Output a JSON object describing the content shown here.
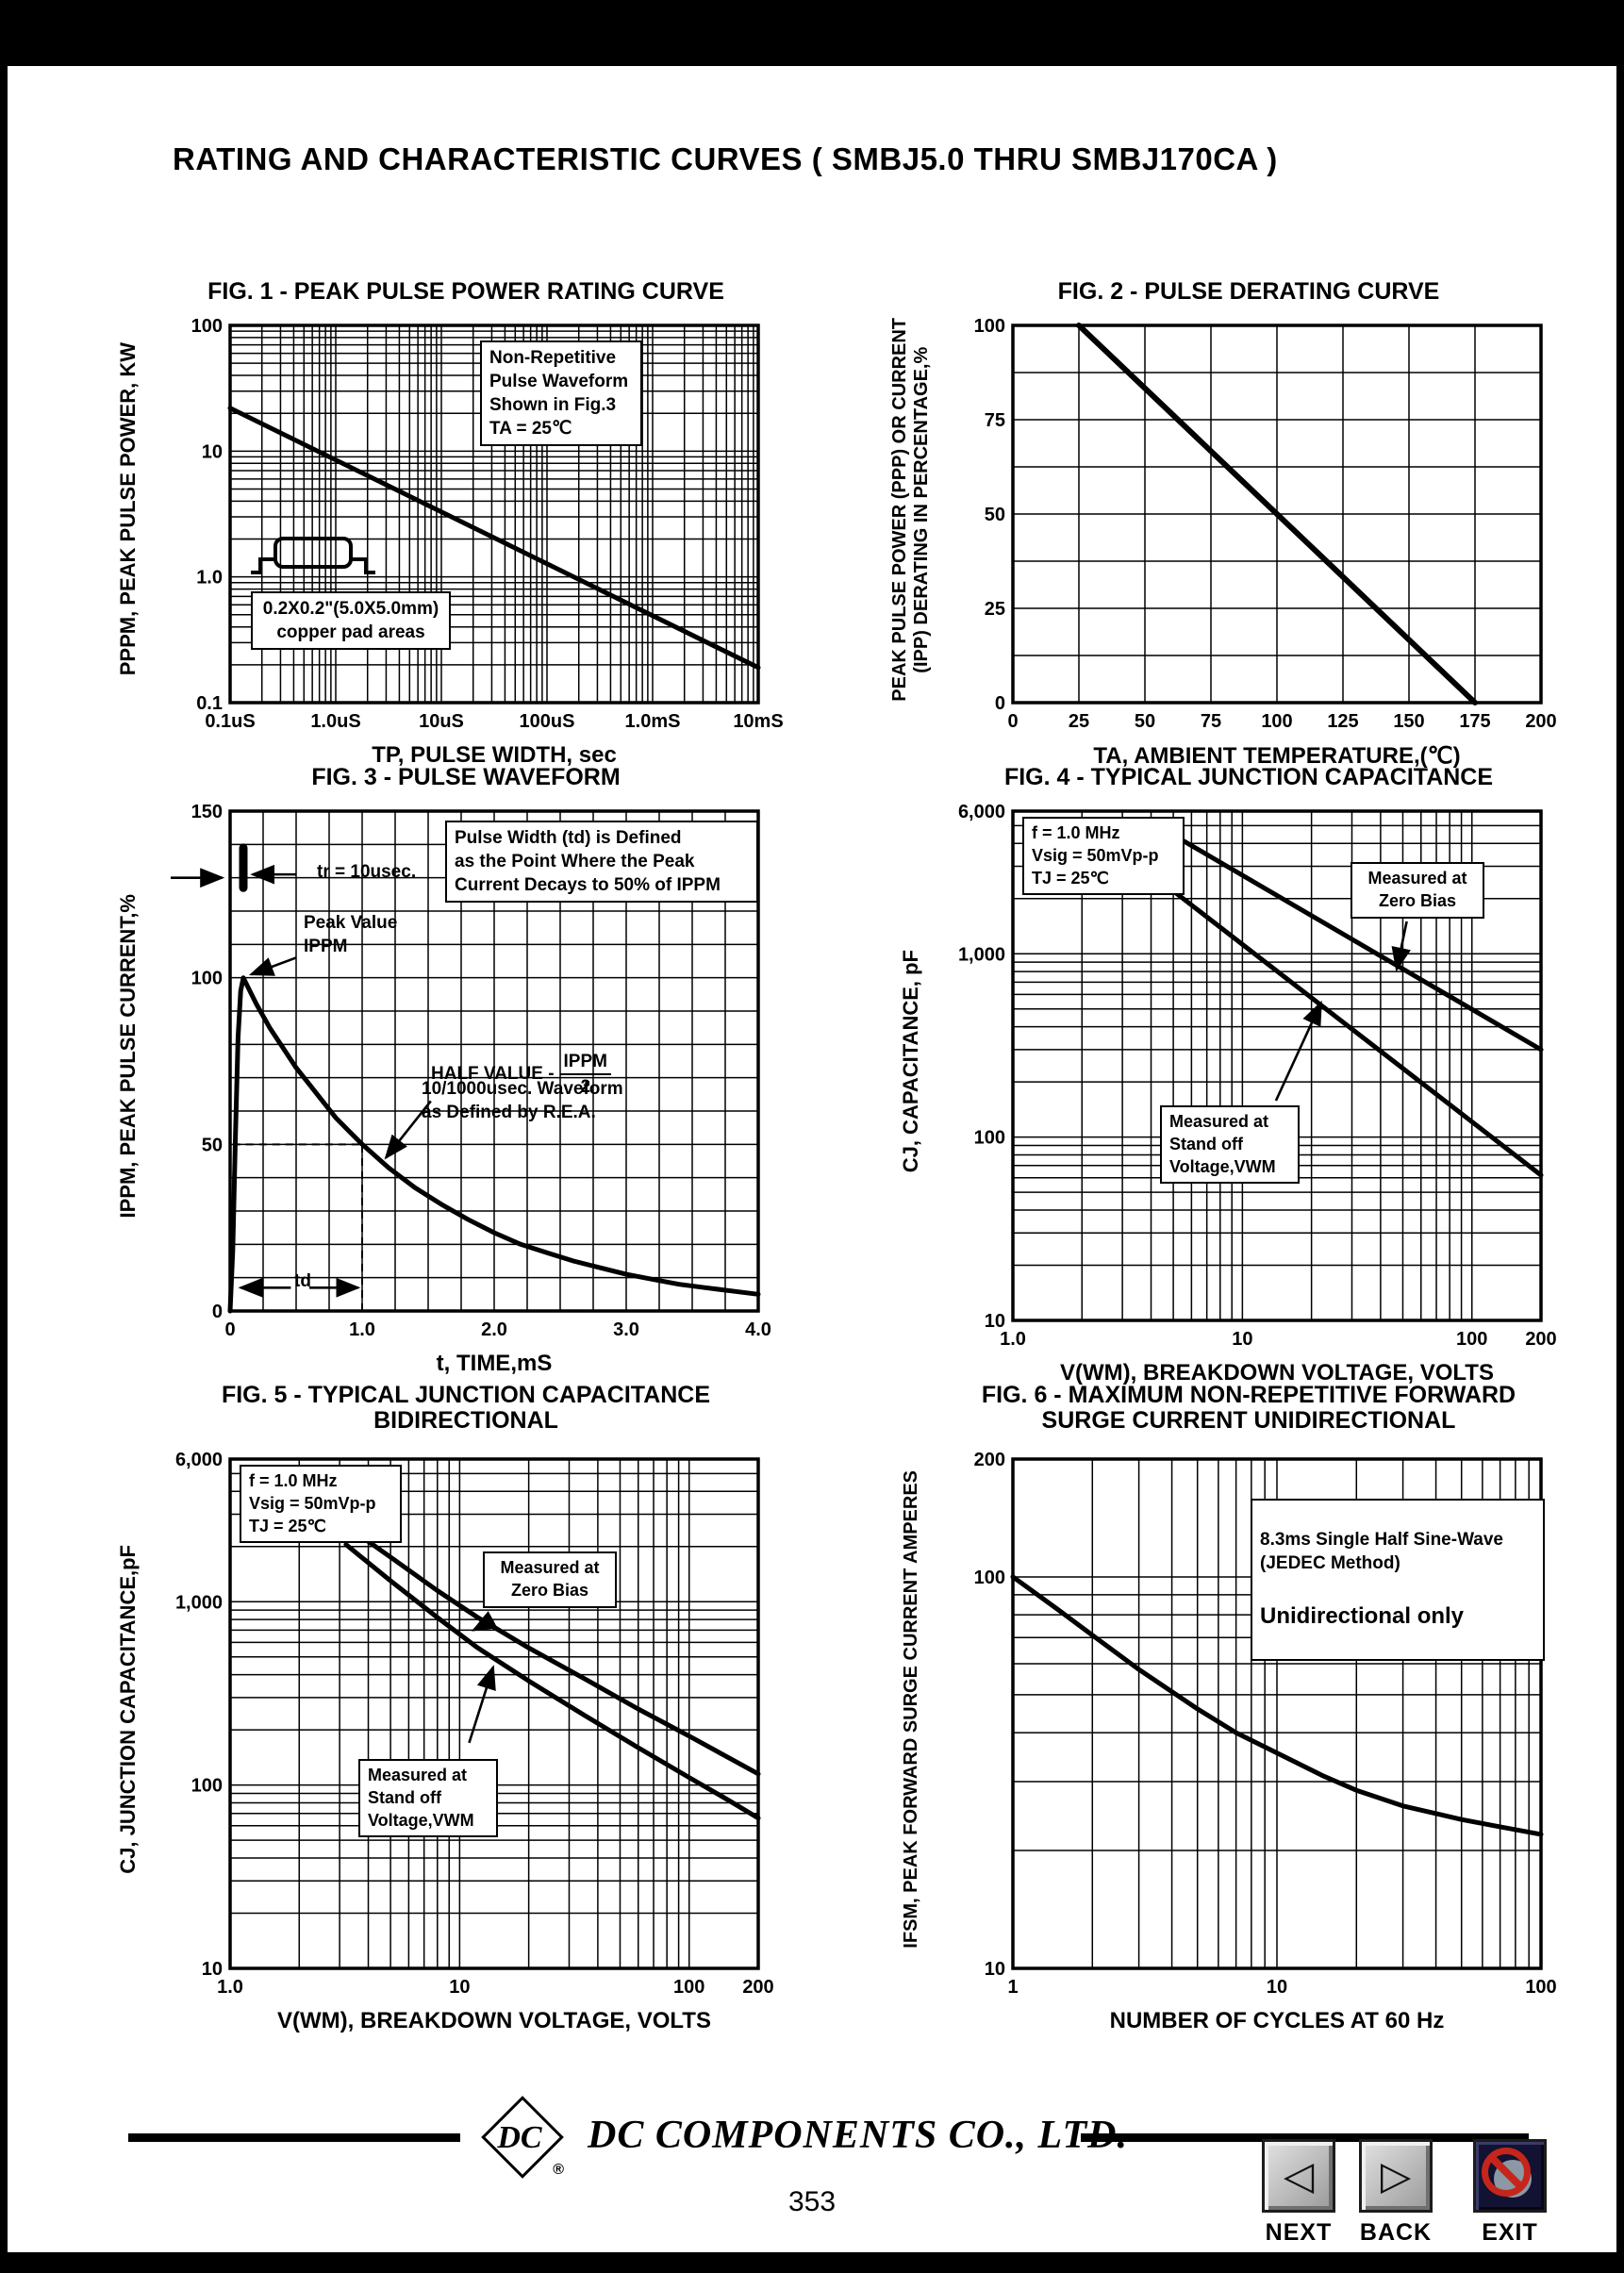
{
  "page": {
    "title": "RATING AND CHARACTERISTIC CURVES ( SMBJ5.0 THRU SMBJ170CA )",
    "page_number": "353"
  },
  "footer": {
    "company": "DC COMPONENTS CO., LTD.",
    "logo_monogram": "DC",
    "registered": "®"
  },
  "nav": {
    "next": "NEXT",
    "back": "BACK",
    "exit": "EXIT"
  },
  "chart_data": [
    {
      "type": "line",
      "title": "FIG. 1 - PEAK PULSE POWER RATING CURVE",
      "xlabel": "TP, PULSE WIDTH, sec",
      "ylabel": "PPPM, PEAK PULSE POWER, KW",
      "x": {
        "log": true,
        "min": 1e-07,
        "max": 0.01
      },
      "y": {
        "log": true,
        "min": 0.1,
        "max": 100
      },
      "x_ticks": [
        {
          "v": 1e-07,
          "label": "0.1uS"
        },
        {
          "v": 1e-06,
          "label": "1.0uS"
        },
        {
          "v": 1e-05,
          "label": "10uS"
        },
        {
          "v": 0.0001,
          "label": "100uS"
        },
        {
          "v": 0.001,
          "label": "1.0mS"
        },
        {
          "v": 0.01,
          "label": "10mS"
        }
      ],
      "y_ticks": [
        {
          "v": 100,
          "label": "100"
        },
        {
          "v": 10,
          "label": "10"
        },
        {
          "v": 1,
          "label": "1.0"
        },
        {
          "v": 0.1,
          "label": "0.1"
        }
      ],
      "series": [
        {
          "name": "peak-pulse-power",
          "points": [
            [
              1e-07,
              22
            ],
            [
              0.01,
              0.19
            ]
          ],
          "width": 5
        }
      ],
      "annotations": [
        {
          "text": "Non-Repetitive\nPulse Waveform\nShown in Fig.3\nTA = 25℃"
        },
        {
          "text": "0.2X0.2\"(5.0X5.0mm)\ncopper pad areas"
        }
      ]
    },
    {
      "type": "line",
      "title": "FIG. 2 - PULSE DERATING CURVE",
      "xlabel": "TA, AMBIENT TEMPERATURE,(℃)",
      "ylabel": "PEAK PULSE POWER (PPP) OR CURRENT\n(IPP) DERATING IN PERCENTAGE,%",
      "x": {
        "log": false,
        "min": 0,
        "max": 200,
        "step": 25
      },
      "y": {
        "log": false,
        "min": 0,
        "max": 100,
        "step": 12.5
      },
      "x_ticks": [
        {
          "v": 0,
          "label": "0"
        },
        {
          "v": 25,
          "label": "25"
        },
        {
          "v": 50,
          "label": "50"
        },
        {
          "v": 75,
          "label": "75"
        },
        {
          "v": 100,
          "label": "100"
        },
        {
          "v": 125,
          "label": "125"
        },
        {
          "v": 150,
          "label": "150"
        },
        {
          "v": 175,
          "label": "175"
        },
        {
          "v": 200,
          "label": "200"
        }
      ],
      "y_ticks": [
        {
          "v": 0,
          "label": "0"
        },
        {
          "v": 25,
          "label": "25"
        },
        {
          "v": 50,
          "label": "50"
        },
        {
          "v": 75,
          "label": "75"
        },
        {
          "v": 100,
          "label": "100"
        }
      ],
      "series": [
        {
          "name": "derating-line",
          "points": [
            [
              25,
              100
            ],
            [
              175,
              0
            ]
          ],
          "width": 6
        }
      ],
      "annotations": []
    },
    {
      "type": "line",
      "title": "FIG. 3 - PULSE WAVEFORM",
      "xlabel": "t, TIME,mS",
      "ylabel": "IPPM, PEAK PULSE CURRENT,%",
      "x": {
        "log": false,
        "min": 0,
        "max": 4,
        "step": 0.25
      },
      "y": {
        "log": false,
        "min": 0,
        "max": 150,
        "step": 10
      },
      "x_ticks": [
        {
          "v": 0,
          "label": "0"
        },
        {
          "v": 1,
          "label": "1.0"
        },
        {
          "v": 2,
          "label": "2.0"
        },
        {
          "v": 3,
          "label": "3.0"
        },
        {
          "v": 4,
          "label": "4.0"
        }
      ],
      "y_ticks": [
        {
          "v": 0,
          "label": "0"
        },
        {
          "v": 50,
          "label": "50"
        },
        {
          "v": 100,
          "label": "100"
        },
        {
          "v": 150,
          "label": "150"
        }
      ],
      "series": [
        {
          "name": "10-1000usec-waveform",
          "points": [
            [
              0,
              0
            ],
            [
              0.02,
              18
            ],
            [
              0.04,
              52
            ],
            [
              0.06,
              82
            ],
            [
              0.08,
              96
            ],
            [
              0.1,
              100
            ],
            [
              0.15,
              96
            ],
            [
              0.2,
              92
            ],
            [
              0.3,
              85
            ],
            [
              0.4,
              79
            ],
            [
              0.5,
              73
            ],
            [
              0.6,
              68
            ],
            [
              0.7,
              63
            ],
            [
              0.8,
              58
            ],
            [
              0.9,
              54
            ],
            [
              1.0,
              50
            ],
            [
              1.2,
              43
            ],
            [
              1.4,
              37
            ],
            [
              1.6,
              32
            ],
            [
              1.8,
              27.5
            ],
            [
              2.0,
              23.5
            ],
            [
              2.2,
              20
            ],
            [
              2.4,
              17.5
            ],
            [
              2.6,
              15
            ],
            [
              2.8,
              13
            ],
            [
              3.0,
              11
            ],
            [
              3.2,
              9.5
            ],
            [
              3.4,
              8
            ],
            [
              3.6,
              7
            ],
            [
              3.8,
              6
            ],
            [
              4.0,
              5
            ]
          ],
          "width": 5
        },
        {
          "name": "tr-pulse-marker",
          "points": [
            [
              0.1,
              127
            ],
            [
              0.1,
              139
            ]
          ],
          "width": 9
        }
      ],
      "dashed": [
        [
          [
            1,
            0
          ],
          [
            1,
            50
          ]
        ],
        [
          [
            0.02,
            50
          ],
          [
            1,
            50
          ]
        ]
      ],
      "arrows": [
        {
          "from": [
            -0.45,
            130
          ],
          "to": [
            -0.06,
            130
          ]
        },
        {
          "from": [
            0.5,
            131
          ],
          "to": [
            0.17,
            131
          ]
        },
        {
          "from": [
            0.5,
            106
          ],
          "to": [
            0.16,
            101
          ]
        },
        {
          "from": [
            1.52,
            63
          ],
          "to": [
            1.18,
            46
          ]
        },
        {
          "from": [
            0.46,
            7
          ],
          "to": [
            0.08,
            7
          ]
        },
        {
          "from": [
            0.6,
            7
          ],
          "to": [
            0.97,
            7
          ]
        }
      ],
      "annotations": [
        {
          "text": "tr = 10usec."
        },
        {
          "text": "Peak Value\nIPPM"
        },
        {
          "text": "Pulse Width (td) is Defined\nas the Point Where the Peak\nCurrent Decays to 50% of IPPM"
        },
        {
          "label": "HALF VALUE -",
          "numerator": "IPPM",
          "denominator": "2",
          "text2": "10/1000usec. Waveform\nas Defined by R.E.A."
        },
        {
          "text": "td"
        }
      ]
    },
    {
      "type": "line",
      "title": "FIG. 4 - TYPICAL JUNCTION CAPACITANCE",
      "xlabel": "V(WM), BREAKDOWN VOLTAGE, VOLTS",
      "ylabel": "CJ, CAPACITANCE, pF",
      "x": {
        "log": true,
        "min": 1,
        "max": 200
      },
      "y": {
        "log": true,
        "min": 10,
        "max": 6000
      },
      "x_ticks": [
        {
          "v": 1,
          "label": "1.0"
        },
        {
          "v": 10,
          "label": "10"
        },
        {
          "v": 100,
          "label": "100"
        },
        {
          "v": 200,
          "label": "200"
        }
      ],
      "y_ticks": [
        {
          "v": 6000,
          "label": "6,000"
        },
        {
          "v": 1000,
          "label": "1,000"
        },
        {
          "v": 100,
          "label": "100"
        },
        {
          "v": 10,
          "label": "10"
        }
      ],
      "series": [
        {
          "name": "measured-at-zero-bias",
          "points": [
            [
              4.5,
              4800
            ],
            [
              200,
              300
            ]
          ],
          "width": 5
        },
        {
          "name": "measured-at-standoff-voltage",
          "points": [
            [
              5,
              2200
            ],
            [
              200,
              62
            ]
          ],
          "width": 5
        }
      ],
      "arrows": [
        {
          "from": [
            52,
            1500
          ],
          "to": [
            47,
            820
          ]
        },
        {
          "from": [
            14,
            158
          ],
          "to": [
            22,
            540
          ]
        }
      ],
      "annotations": [
        {
          "text": "f = 1.0 MHz\nVsig = 50mVp-p\nTJ = 25℃"
        },
        {
          "text": "Measured at\nZero Bias"
        },
        {
          "text": "Measured at\nStand off\nVoltage,VWM"
        }
      ]
    },
    {
      "type": "line",
      "title": "FIG. 5 - TYPICAL JUNCTION CAPACITANCE",
      "title2": "BIDIRECTIONAL",
      "xlabel": "V(WM), BREAKDOWN VOLTAGE, VOLTS",
      "ylabel": "CJ, JUNCTION CAPACITANCE,pF",
      "x": {
        "log": true,
        "min": 1,
        "max": 200
      },
      "y": {
        "log": true,
        "min": 10,
        "max": 6000
      },
      "x_ticks": [
        {
          "v": 1,
          "label": "1.0"
        },
        {
          "v": 10,
          "label": "10"
        },
        {
          "v": 100,
          "label": "100"
        },
        {
          "v": 200,
          "label": "200"
        }
      ],
      "y_ticks": [
        {
          "v": 6000,
          "label": "6,000"
        },
        {
          "v": 1000,
          "label": "1,000"
        },
        {
          "v": 100,
          "label": "100"
        },
        {
          "v": 10,
          "label": "10"
        }
      ],
      "series": [
        {
          "name": "measured-at-zero-bias",
          "points": [
            [
              3.2,
              2600
            ],
            [
              5,
              1750
            ],
            [
              8,
              1150
            ],
            [
              12,
              820
            ],
            [
              20,
              560
            ],
            [
              35,
              380
            ],
            [
              60,
              260
            ],
            [
              100,
              185
            ],
            [
              150,
              140
            ],
            [
              200,
              115
            ]
          ],
          "width": 5
        },
        {
          "name": "measured-at-standoff-voltage",
          "points": [
            [
              3.2,
              2050
            ],
            [
              5,
              1300
            ],
            [
              8,
              820
            ],
            [
              12,
              560
            ],
            [
              20,
              370
            ],
            [
              35,
              240
            ],
            [
              60,
              160
            ],
            [
              100,
              110
            ],
            [
              150,
              82
            ],
            [
              200,
              66
            ]
          ],
          "width": 5
        }
      ],
      "arrows": [
        {
          "from": [
            14,
            800
          ],
          "to": [
            11.5,
            700
          ]
        },
        {
          "from": [
            11,
            170
          ],
          "to": [
            14,
            440
          ]
        }
      ],
      "annotations": [
        {
          "text": "f = 1.0 MHz\nVsig = 50mVp-p\nTJ = 25℃"
        },
        {
          "text": "Measured at\nZero Bias"
        },
        {
          "text": "Measured at\nStand off\nVoltage,VWM"
        }
      ]
    },
    {
      "type": "line",
      "title": "FIG. 6 - MAXIMUM NON-REPETITIVE FORWARD",
      "title2": "SURGE CURRENT UNIDIRECTIONAL",
      "xlabel": "NUMBER OF CYCLES AT 60 Hz",
      "ylabel": "IFSM, PEAK FORWARD SURGE CURRENT AMPERES",
      "x": {
        "log": true,
        "min": 1,
        "max": 100
      },
      "y": {
        "log": true,
        "min": 10,
        "max": 200
      },
      "x_ticks": [
        {
          "v": 1,
          "label": "1"
        },
        {
          "v": 10,
          "label": "10"
        },
        {
          "v": 100,
          "label": "100"
        }
      ],
      "y_ticks": [
        {
          "v": 200,
          "label": "200"
        },
        {
          "v": 100,
          "label": "100"
        },
        {
          "v": 10,
          "label": "10"
        }
      ],
      "series": [
        {
          "name": "surge-current",
          "points": [
            [
              1,
              100
            ],
            [
              1.5,
              82
            ],
            [
              2,
              71
            ],
            [
              3,
              58
            ],
            [
              5,
              46
            ],
            [
              7,
              40
            ],
            [
              10,
              35.5
            ],
            [
              15,
              31
            ],
            [
              20,
              28.5
            ],
            [
              30,
              26
            ],
            [
              50,
              24
            ],
            [
              70,
              23
            ],
            [
              100,
              22
            ]
          ],
          "width": 5
        }
      ],
      "annotations": [
        {
          "text": "8.3ms Single Half Sine-Wave\n(JEDEC Method)",
          "text2": "Unidirectional only"
        }
      ]
    }
  ]
}
